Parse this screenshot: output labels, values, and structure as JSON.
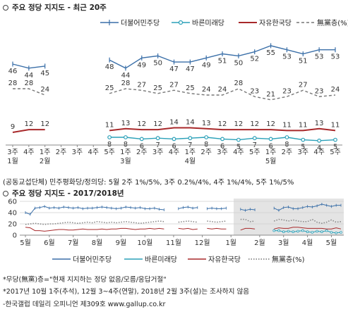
{
  "top_chart": {
    "title": "주요 정당 지지도 - 최근 20주",
    "legend": [
      {
        "name": "더불어민주당",
        "color": "#3a6fa8",
        "style": "marker"
      },
      {
        "name": "바른미래당",
        "color": "#2aa0b8",
        "style": "circle"
      },
      {
        "name": "자유한국당",
        "color": "#a8282a",
        "style": "solid"
      },
      {
        "name": "無黨층(%)",
        "color": "#777777",
        "style": "dashed"
      }
    ],
    "footnote": "(공동교섭단체) 민주평화당/정의당: 5월 2주 1%/5%, 3주 0.2%/4%, 4주 1%/4%, 5주 1%/5%"
  },
  "bottom_chart": {
    "title": "주요 정당 지지도 - 2017/2018년",
    "legend": [
      {
        "name": "더불어민주당",
        "color": "#3a6fa8"
      },
      {
        "name": "바른미래당",
        "color": "#2aa0b8"
      },
      {
        "name": "자유한국당",
        "color": "#a8282a"
      },
      {
        "name": "無黨층(%)",
        "color": "#888888"
      }
    ]
  },
  "notes": [
    "*무당(無黨)층=\"현재 지지하는 정당 없음/모름/응답거절\"",
    "*2017년 10월 1주(추석), 12월 3~4주(연말), 2018년 2월 3주(설)는 조사하지 않음",
    "-한국갤럽 데일리 오피니언 제309호 www.gallup.co.kr"
  ],
  "chart_data": [
    {
      "type": "line",
      "title": "주요 정당 지지도 - 최근 20주",
      "categories": [
        "3주",
        "4주",
        "1주",
        "2주",
        "3주",
        "4주",
        "5주",
        "1주",
        "2주",
        "3주",
        "4주",
        "1주",
        "2주",
        "3주",
        "4주",
        "5주",
        "1주",
        "2주",
        "3주",
        "4주",
        "5주"
      ],
      "category_groups": [
        {
          "label": "1월",
          "start": 0
        },
        {
          "label": "2월",
          "start": 2
        },
        {
          "label": "3월",
          "start": 7
        },
        {
          "label": "4월",
          "start": 11
        },
        {
          "label": "5월",
          "start": 16
        }
      ],
      "series": [
        {
          "name": "더불어민주당",
          "color": "#3a6fa8",
          "values": [
            46,
            44,
            45,
            null,
            null,
            null,
            48,
            44,
            49,
            50,
            47,
            47,
            49,
            51,
            50,
            52,
            55,
            53,
            51,
            53,
            53
          ]
        },
        {
          "name": "바른미래당",
          "color": "#2aa0b8",
          "values": [
            null,
            null,
            null,
            null,
            null,
            null,
            8,
            8,
            6,
            7,
            6,
            7,
            8,
            6,
            5,
            7,
            6,
            8,
            5,
            4,
            5
          ]
        },
        {
          "name": "자유한국당",
          "color": "#a8282a",
          "values": [
            9,
            12,
            12,
            null,
            null,
            null,
            11,
            13,
            12,
            12,
            14,
            14,
            13,
            12,
            12,
            12,
            12,
            11,
            11,
            13,
            11
          ]
        },
        {
          "name": "無黨층(%)",
          "color": "#777777",
          "values": [
            28,
            28,
            24,
            null,
            null,
            null,
            25,
            28,
            27,
            25,
            27,
            25,
            24,
            24,
            28,
            23,
            21,
            23,
            27,
            23,
            24
          ]
        }
      ]
    },
    {
      "type": "line",
      "title": "주요 정당 지지도 - 2017/2018년",
      "x_labels": [
        "5월",
        "6월",
        "7월",
        "8월",
        "9월",
        "10월",
        "11월",
        "12월",
        "1월",
        "2월",
        "3월",
        "4월",
        "5월"
      ],
      "y_ticks": [
        0,
        20,
        40,
        60
      ],
      "ylim": [
        0,
        60
      ],
      "series": [
        {
          "name": "더불어민주당",
          "color": "#3a6fa8",
          "values": [
            40,
            37,
            48,
            49,
            51,
            48,
            49,
            48,
            50,
            49,
            48,
            49,
            47,
            48,
            48,
            49,
            50,
            49,
            48,
            47,
            48,
            50,
            49,
            48,
            49,
            47,
            47,
            48,
            46,
            45,
            null,
            null,
            47,
            49,
            50,
            48,
            49,
            null,
            47,
            48,
            47,
            47,
            48,
            null,
            null,
            46,
            44,
            46,
            45,
            null,
            null,
            null,
            48,
            44,
            49,
            50,
            47,
            47,
            49,
            51,
            50,
            52,
            55,
            53,
            51,
            53,
            53
          ]
        },
        {
          "name": "바른미래당",
          "color": "#2aa0b8",
          "values": [
            null,
            null,
            null,
            null,
            null,
            null,
            null,
            null,
            null,
            null,
            null,
            null,
            null,
            null,
            null,
            null,
            null,
            null,
            null,
            null,
            null,
            null,
            null,
            null,
            null,
            null,
            null,
            null,
            null,
            null,
            null,
            null,
            null,
            null,
            null,
            null,
            null,
            null,
            null,
            null,
            null,
            null,
            null,
            null,
            null,
            null,
            null,
            null,
            null,
            null,
            null,
            null,
            8,
            8,
            6,
            7,
            6,
            7,
            8,
            6,
            5,
            7,
            6,
            8,
            5,
            4,
            5
          ]
        },
        {
          "name": "자유한국당",
          "color": "#a8282a",
          "values": [
            14,
            13,
            8,
            8,
            7,
            8,
            9,
            10,
            10,
            9,
            9,
            10,
            11,
            10,
            10,
            10,
            11,
            10,
            11,
            11,
            12,
            12,
            11,
            10,
            11,
            11,
            12,
            11,
            12,
            11,
            null,
            null,
            12,
            11,
            12,
            10,
            11,
            null,
            12,
            11,
            12,
            11,
            11,
            null,
            null,
            9,
            12,
            12,
            11,
            null,
            null,
            null,
            11,
            13,
            12,
            12,
            14,
            14,
            13,
            12,
            12,
            12,
            12,
            11,
            11,
            13,
            11
          ]
        },
        {
          "name": "無黨층(%)",
          "color": "#888888",
          "values": [
            19,
            20,
            21,
            20,
            19,
            20,
            20,
            21,
            22,
            23,
            22,
            21,
            22,
            23,
            22,
            24,
            23,
            22,
            23,
            22,
            23,
            24,
            23,
            22,
            21,
            22,
            23,
            24,
            25,
            24,
            null,
            null,
            23,
            24,
            25,
            24,
            23,
            null,
            25,
            24,
            23,
            24,
            25,
            null,
            null,
            28,
            28,
            24,
            25,
            null,
            null,
            null,
            25,
            28,
            27,
            25,
            27,
            25,
            24,
            24,
            28,
            23,
            21,
            23,
            27,
            23,
            24
          ]
        }
      ]
    }
  ]
}
